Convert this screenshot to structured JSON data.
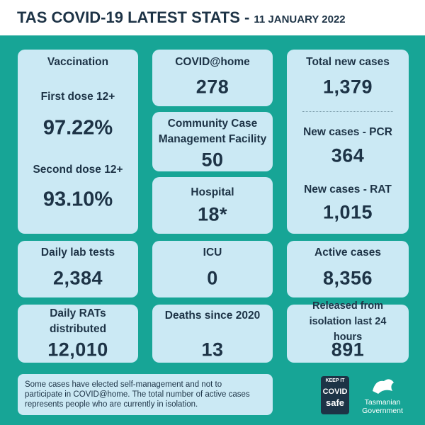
{
  "header": {
    "title": "TAS COVID-19 LATEST STATS -",
    "date": "11 JANUARY 2022"
  },
  "vaccination": {
    "title": "Vaccination",
    "first_dose": {
      "label": "First dose 12+",
      "value": "97.22%"
    },
    "second_dose": {
      "label": "Second dose 12+",
      "value": "93.10%"
    }
  },
  "care": [
    {
      "label": "COVID@home",
      "value": "278"
    },
    {
      "label": "Community Case Management Facility",
      "value": "50"
    },
    {
      "label": "Hospital",
      "value": "18*"
    }
  ],
  "cases": [
    {
      "label": "Total new cases",
      "value": "1,379"
    },
    {
      "label": "New cases - PCR",
      "value": "364"
    },
    {
      "label": "New cases - RAT",
      "value": "1,015"
    }
  ],
  "row2": [
    {
      "label": "Daily lab tests",
      "value": "2,384"
    },
    {
      "label": "ICU",
      "value": "0"
    },
    {
      "label": "Active cases",
      "value": "8,356"
    }
  ],
  "row3": [
    {
      "label": "Daily RATs distributed",
      "value": "12,010"
    },
    {
      "label": "Deaths since 2020",
      "value": "13"
    },
    {
      "label": "Released from isolation last 24 hours",
      "value": "891"
    }
  ],
  "footnote": "Some cases have elected self-management and not to participate in COVID@home. The total number of active cases represents people who are currently in isolation.",
  "logos": {
    "keep_it": "KEEP IT",
    "covid": "COVID",
    "safe": "safe",
    "gov_line1": "Tasmanian",
    "gov_line2": "Government"
  }
}
